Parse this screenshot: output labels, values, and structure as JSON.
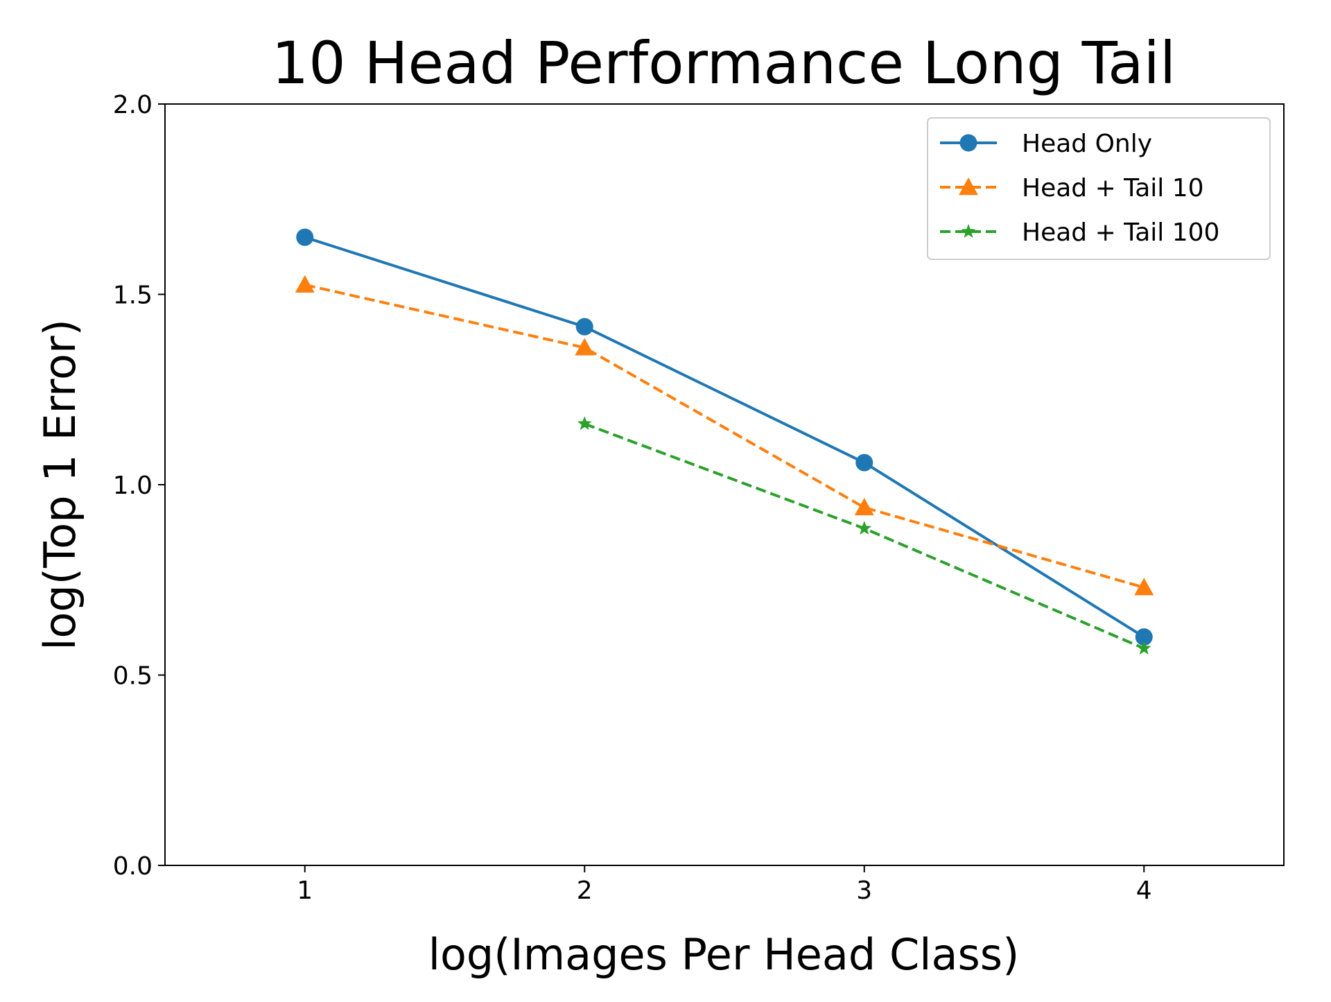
{
  "chart_data": {
    "type": "line",
    "title": "10 Head Performance Long Tail",
    "xlabel": "log(Images Per Head Class)",
    "ylabel": "log(Top 1 Error)",
    "xlim": [
      0.5,
      4.5
    ],
    "ylim": [
      0.0,
      2.0
    ],
    "xticks": [
      1,
      2,
      3,
      4
    ],
    "xtick_labels": [
      "1",
      "2",
      "3",
      "4"
    ],
    "yticks": [
      0.0,
      0.5,
      1.0,
      1.5,
      2.0
    ],
    "ytick_labels": [
      "0.0",
      "0.5",
      "1.0",
      "1.5",
      "2.0"
    ],
    "grid": false,
    "legend_position": "top-right",
    "series": [
      {
        "name": "Head Only",
        "color": "#1f77b4",
        "line_style": "solid",
        "marker": "circle",
        "x": [
          1,
          2,
          3,
          4
        ],
        "y": [
          1.65,
          1.415,
          1.058,
          0.6
        ]
      },
      {
        "name": "Head + Tail 10",
        "color": "#ff7f0e",
        "line_style": "dashed",
        "marker": "triangle",
        "x": [
          1,
          2,
          3,
          4
        ],
        "y": [
          1.525,
          1.36,
          0.94,
          0.73
        ]
      },
      {
        "name": "Head + Tail 100",
        "color": "#2ca02c",
        "line_style": "dashed",
        "marker": "star",
        "x": [
          2,
          3,
          4
        ],
        "y": [
          1.16,
          0.885,
          0.57
        ]
      }
    ]
  }
}
